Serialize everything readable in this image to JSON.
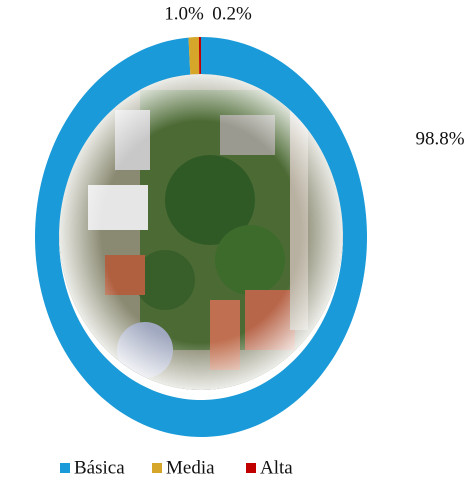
{
  "chart_data": {
    "type": "donut",
    "categories": [
      "Básica",
      "Media",
      "Alta"
    ],
    "values": [
      98.8,
      1.0,
      0.2
    ],
    "value_labels": [
      "98.8%",
      "1.0%",
      "0.2%"
    ],
    "colors": [
      "#1a9ad8",
      "#d6a62a",
      "#c00000"
    ],
    "legend": "bottom"
  }
}
